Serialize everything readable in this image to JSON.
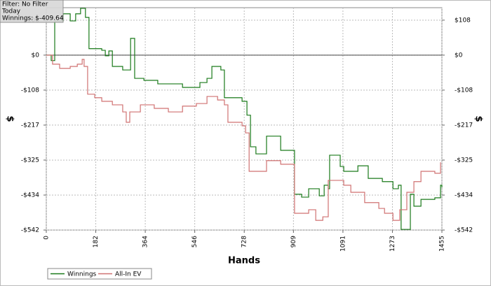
{
  "chart_data": {
    "type": "line",
    "step": true,
    "info": [
      "Filter: No Filter",
      "Today",
      "Winnings: $-409.64"
    ],
    "x_label": "Hands",
    "y_label": "$",
    "xlim": [
      0,
      1455
    ],
    "xticks": [
      0,
      182,
      364,
      546,
      728,
      909,
      1091,
      1273,
      1455
    ],
    "ylim": [
      -542,
      147
    ],
    "yticks": [
      {
        "value": 108.4,
        "label": "$108"
      },
      {
        "value": 0,
        "label": "$0"
      },
      {
        "value": -108.4,
        "label": "-$108"
      },
      {
        "value": -216.8,
        "label": "-$217"
      },
      {
        "value": -325.2,
        "label": "-$325"
      },
      {
        "value": -433.6,
        "label": "-$434"
      },
      {
        "value": -542,
        "label": "-$542"
      }
    ],
    "grid": true,
    "legend": "bottom-left",
    "series": [
      {
        "name": "Winnings",
        "color": "#1a7a1a",
        "x": [
          0,
          18,
          31,
          62,
          88,
          108,
          126,
          144,
          157,
          204,
          217,
          230,
          243,
          281,
          302,
          310,
          325,
          359,
          410,
          462,
          501,
          565,
          591,
          609,
          642,
          655,
          720,
          738,
          751,
          771,
          810,
          836,
          862,
          900,
          913,
          939,
          965,
          1004,
          1022,
          1037,
          1042,
          1081,
          1094,
          1146,
          1184,
          1236,
          1275,
          1295,
          1305,
          1331,
          1339,
          1352,
          1378,
          1429,
          1450,
          1455
        ],
        "values": [
          0,
          -17,
          106,
          128,
          106,
          128,
          145,
          117,
          20,
          15,
          -2,
          13,
          -35,
          -46,
          -46,
          52,
          -72,
          -78,
          -89,
          -89,
          -100,
          -85,
          -72,
          -35,
          -46,
          -132,
          -143,
          -186,
          -284,
          -306,
          -251,
          -251,
          -295,
          -295,
          -431,
          -440,
          -414,
          -436,
          -403,
          -414,
          -310,
          -345,
          -360,
          -343,
          -382,
          -392,
          -414,
          -403,
          -540,
          -540,
          -431,
          -468,
          -447,
          -442,
          -403,
          -410
        ]
      },
      {
        "name": "All-In EV",
        "color": "#d07272",
        "x": [
          0,
          23,
          49,
          88,
          114,
          132,
          139,
          152,
          178,
          204,
          243,
          281,
          294,
          307,
          346,
          397,
          449,
          501,
          552,
          591,
          630,
          655,
          668,
          720,
          733,
          746,
          784,
          810,
          862,
          913,
          965,
          991,
          1017,
          1037,
          1094,
          1120,
          1171,
          1223,
          1244,
          1275,
          1300,
          1326,
          1352,
          1378,
          1429,
          1450
        ],
        "values": [
          0,
          -28,
          -41,
          -35,
          -28,
          -13,
          -35,
          -121,
          -132,
          -143,
          -154,
          -176,
          -208,
          -176,
          -154,
          -165,
          -176,
          -158,
          -150,
          -128,
          -139,
          -154,
          -208,
          -219,
          -241,
          -360,
          -360,
          -327,
          -338,
          -490,
          -479,
          -512,
          -501,
          -388,
          -403,
          -425,
          -457,
          -475,
          -490,
          -512,
          -479,
          -425,
          -392,
          -360,
          -366,
          -332
        ]
      }
    ]
  }
}
